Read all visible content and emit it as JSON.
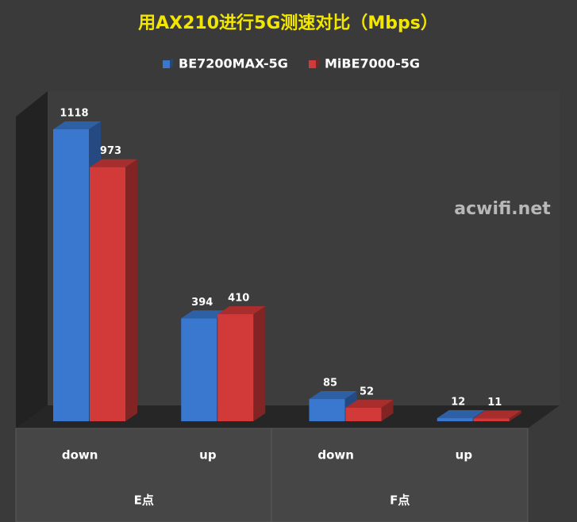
{
  "chart_data": {
    "type": "bar3d",
    "title": "用AX210进行5G测速对比（Mbps）",
    "watermark": "acwifi.net",
    "categories": [
      "down",
      "up",
      "down",
      "up"
    ],
    "groups": [
      "E点",
      "F点"
    ],
    "series": [
      {
        "name": "BE7200MAX-5G",
        "color": "#3a78d0",
        "values": [
          1118,
          394,
          85,
          12
        ]
      },
      {
        "name": "MiBE7000-5G",
        "color": "#d23a3a",
        "values": [
          973,
          410,
          52,
          11
        ]
      }
    ],
    "ylim": [
      0,
      1200
    ],
    "legend": "top"
  }
}
